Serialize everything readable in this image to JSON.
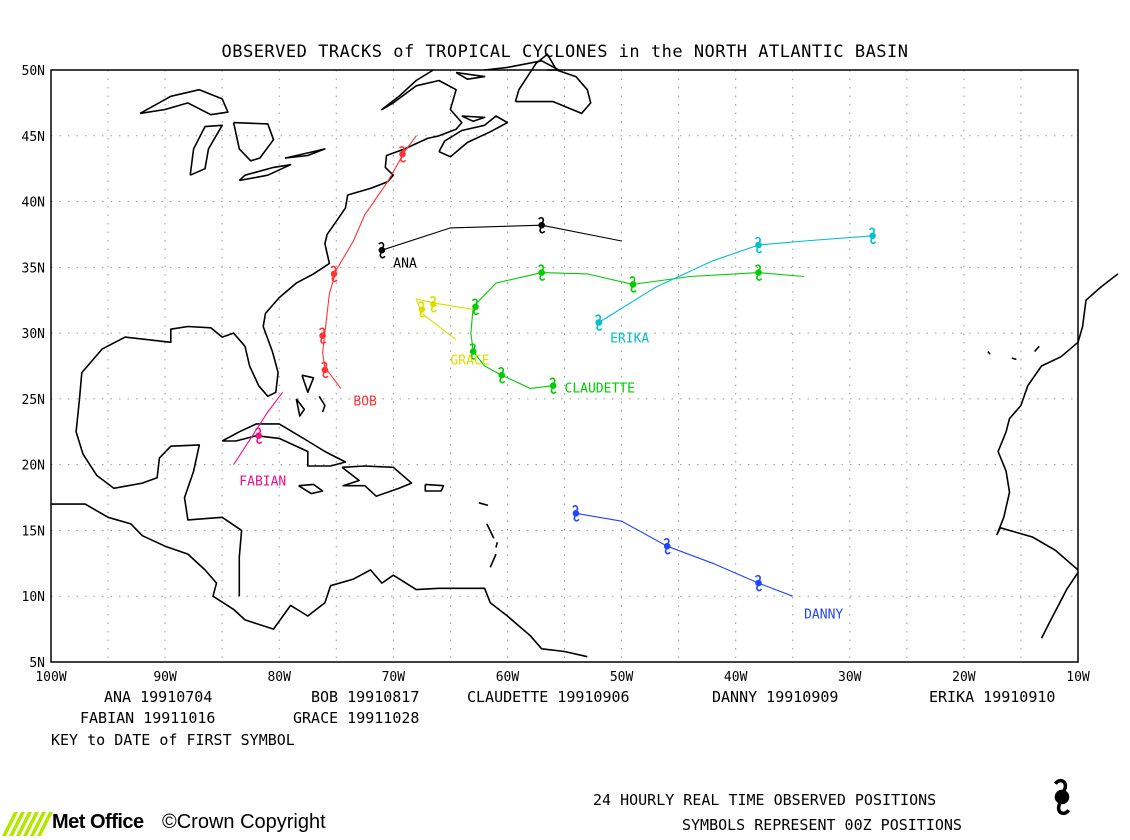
{
  "title": "OBSERVED TRACKS of TROPICAL CYCLONES in the NORTH ATLANTIC BASIN",
  "axes": {
    "lon_labels": [
      "100W",
      "90W",
      "80W",
      "70W",
      "60W",
      "50W",
      "40W",
      "30W",
      "20W",
      "10W"
    ],
    "lat_labels": [
      "50N",
      "45N",
      "40N",
      "35N",
      "30N",
      "25N",
      "20N",
      "15N",
      "10N",
      "5N"
    ],
    "lon_range": [
      -100,
      -10
    ],
    "lat_range": [
      5,
      50
    ],
    "grid": true
  },
  "storms": [
    {
      "name": "ANA",
      "color": "#000000",
      "key_date": "19910704",
      "track": [
        [
          -71,
          36.3
        ],
        [
          -65,
          38
        ],
        [
          -57,
          38.2
        ],
        [
          -50,
          37
        ]
      ],
      "symbols": [
        [
          -71,
          36.3
        ],
        [
          -57,
          38.2
        ]
      ]
    },
    {
      "name": "BOB",
      "color": "#ff3333",
      "key_date": "19910817",
      "track": [
        [
          -74.6,
          25.8
        ],
        [
          -76,
          27.4
        ],
        [
          -76.2,
          28.5
        ],
        [
          -76,
          30
        ],
        [
          -75.8,
          31.5
        ],
        [
          -75.6,
          33
        ],
        [
          -75,
          34.8
        ],
        [
          -73.5,
          37
        ],
        [
          -72.5,
          39
        ],
        [
          -70.5,
          41.5
        ],
        [
          -69,
          43.8
        ],
        [
          -68,
          45
        ]
      ],
      "symbols": [
        [
          -76,
          27.2
        ],
        [
          -76.2,
          29.8
        ],
        [
          -75.2,
          34.5
        ],
        [
          -69.2,
          43.6
        ]
      ]
    },
    {
      "name": "CLAUDETTE",
      "color": "#00cc00",
      "key_date": "19910906",
      "track": [
        [
          -56,
          26
        ],
        [
          -58,
          25.8
        ],
        [
          -60.5,
          26.8
        ],
        [
          -62,
          27.5
        ],
        [
          -63,
          28.6
        ],
        [
          -63.2,
          30
        ],
        [
          -63,
          32
        ],
        [
          -61,
          33.8
        ],
        [
          -57,
          34.6
        ],
        [
          -53,
          34.5
        ],
        [
          -49,
          33.7
        ],
        [
          -44,
          34.3
        ],
        [
          -38,
          34.6
        ],
        [
          -34,
          34.3
        ]
      ],
      "symbols": [
        [
          -56,
          26
        ],
        [
          -60.5,
          26.8
        ],
        [
          -63,
          28.6
        ],
        [
          -62.8,
          32
        ],
        [
          -57,
          34.6
        ],
        [
          -49,
          33.7
        ],
        [
          -38,
          34.6
        ]
      ]
    },
    {
      "name": "DANNY",
      "color": "#2244ff",
      "key_date": "19910909",
      "track": [
        [
          -54,
          16.3
        ],
        [
          -50,
          15.7
        ],
        [
          -46,
          13.8
        ],
        [
          -42,
          12.5
        ],
        [
          -38,
          11
        ],
        [
          -35,
          10
        ]
      ],
      "symbols": [
        [
          -54,
          16.3
        ],
        [
          -46,
          13.8
        ],
        [
          -38,
          11
        ]
      ]
    },
    {
      "name": "ERIKA",
      "color": "#00c0cc",
      "key_date": "19910910",
      "track": [
        [
          -52,
          30.8
        ],
        [
          -47,
          33.5
        ],
        [
          -42,
          35.5
        ],
        [
          -38,
          36.7
        ],
        [
          -34,
          37
        ],
        [
          -28,
          37.4
        ]
      ],
      "symbols": [
        [
          -52,
          30.8
        ],
        [
          -38,
          36.7
        ],
        [
          -28,
          37.4
        ]
      ]
    },
    {
      "name": "FABIAN",
      "color": "#ee1188",
      "key_date": "19911016",
      "track": [
        [
          -84,
          20
        ],
        [
          -82.5,
          22
        ],
        [
          -81,
          24
        ],
        [
          -79.7,
          25.5
        ]
      ],
      "symbols": [
        [
          -81.8,
          22.2
        ]
      ]
    },
    {
      "name": "GRACE",
      "color": "#dddd00",
      "key_date": "19911028",
      "track": [
        [
          -64.5,
          29.5
        ],
        [
          -67.5,
          31.5
        ],
        [
          -68,
          32.6
        ],
        [
          -66.5,
          32.3
        ],
        [
          -63,
          31.8
        ]
      ],
      "symbols": [
        [
          -67.5,
          31.8
        ],
        [
          -66.5,
          32.2
        ]
      ]
    }
  ],
  "storm_labels": [
    {
      "name": "ANA",
      "lon": -70,
      "lat": 35,
      "color": "#000000"
    },
    {
      "name": "BOB",
      "lon": -73.5,
      "lat": 24.5,
      "color": "#ff3333"
    },
    {
      "name": "CLAUDETTE",
      "lon": -55,
      "lat": 25.5,
      "color": "#00cc00"
    },
    {
      "name": "DANNY",
      "lon": -34,
      "lat": 8.3,
      "color": "#2244ff"
    },
    {
      "name": "ERIKA",
      "lon": -51,
      "lat": 29.3,
      "color": "#00c0cc"
    },
    {
      "name": "FABIAN",
      "lon": -83.5,
      "lat": 18.4,
      "color": "#ee1188"
    },
    {
      "name": "GRACE",
      "lon": -65,
      "lat": 27.6,
      "color": "#dddd00"
    }
  ],
  "key": {
    "row1": [
      "ANA 19910704",
      "BOB 19910817",
      "CLAUDETTE 19910906",
      "DANNY 19910909",
      "ERIKA 19910910"
    ],
    "row2": [
      "FABIAN 19911016",
      "GRACE 19911028"
    ],
    "caption": "KEY to DATE of FIRST SYMBOL"
  },
  "footer": {
    "positions_text": "24 HOURLY REAL TIME OBSERVED POSITIONS",
    "symbols_text": "SYMBOLS REPRESENT 00Z POSITIONS",
    "logo_text": "Met Office",
    "copyright": "©Crown Copyright",
    "logo_color": "#b4e600"
  }
}
